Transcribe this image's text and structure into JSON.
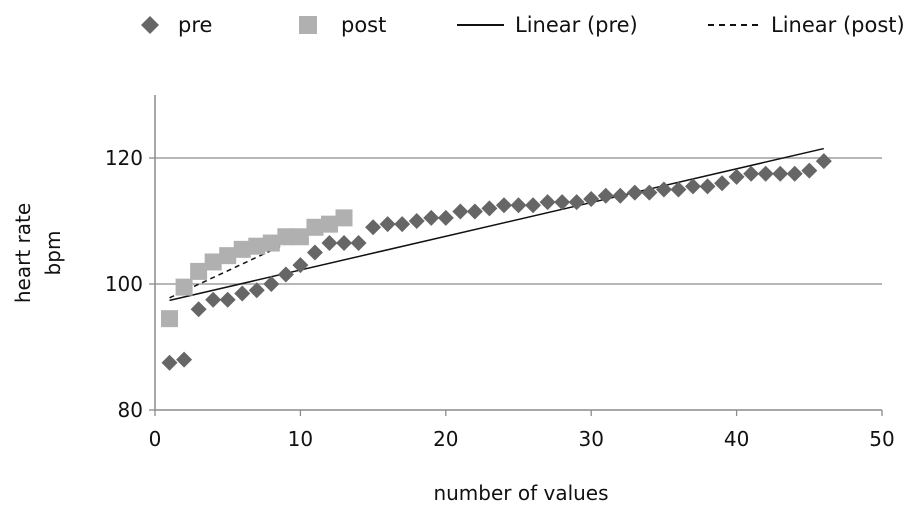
{
  "chart_data": {
    "type": "scatter",
    "title": "",
    "xlabel": "number of values",
    "ylabel_lines": [
      "heart rate",
      "bpm"
    ],
    "xlim": [
      0,
      50
    ],
    "ylim": [
      80,
      130
    ],
    "x_ticks": [
      "0",
      "10",
      "20",
      "30",
      "40",
      "50"
    ],
    "y_ticks": [
      "80",
      "100",
      "120"
    ],
    "grid": "horizontal",
    "legend_position": "top",
    "legend": [
      "pre",
      "post",
      "Linear (pre)",
      "Linear (post)"
    ],
    "series": [
      {
        "name": "pre",
        "marker": "diamond",
        "color": "#666666",
        "x": [
          1,
          2,
          3,
          4,
          5,
          6,
          7,
          8,
          9,
          10,
          11,
          12,
          13,
          14,
          15,
          16,
          17,
          18,
          19,
          20,
          21,
          22,
          23,
          24,
          25,
          26,
          27,
          28,
          29,
          30,
          31,
          32,
          33,
          34,
          35,
          36,
          37,
          38,
          39,
          40,
          41,
          42,
          43,
          44,
          45,
          46
        ],
        "y": [
          87.5,
          88,
          96,
          97.5,
          97.5,
          98.5,
          99,
          100,
          101.5,
          103,
          105,
          106.5,
          106.5,
          106.5,
          109,
          109.5,
          109.5,
          110,
          110.5,
          110.5,
          111.5,
          111.5,
          112,
          112.5,
          112.5,
          112.5,
          113,
          113,
          113,
          113.5,
          114,
          114,
          114.5,
          114.5,
          115,
          115,
          115.5,
          115.5,
          116,
          117,
          117.5,
          117.5,
          117.5,
          117.5,
          118,
          119.5
        ]
      },
      {
        "name": "post",
        "marker": "square",
        "color": "#b0b0b0",
        "x": [
          1,
          2,
          3,
          4,
          5,
          6,
          7,
          8,
          9,
          10,
          11,
          12,
          13
        ],
        "y": [
          94.5,
          99.5,
          102,
          103.5,
          104.5,
          105.5,
          106,
          106.5,
          107.5,
          107.5,
          109,
          109.5,
          110.5
        ]
      }
    ],
    "trendlines": [
      {
        "name": "Linear (pre)",
        "style": "solid",
        "color": "#111111",
        "x": [
          1,
          46
        ],
        "y": [
          97.4,
          121.5
        ]
      },
      {
        "name": "Linear (post)",
        "style": "dashed",
        "color": "#111111",
        "x": [
          1,
          13
        ],
        "y": [
          97.8,
          110.7
        ]
      }
    ]
  }
}
